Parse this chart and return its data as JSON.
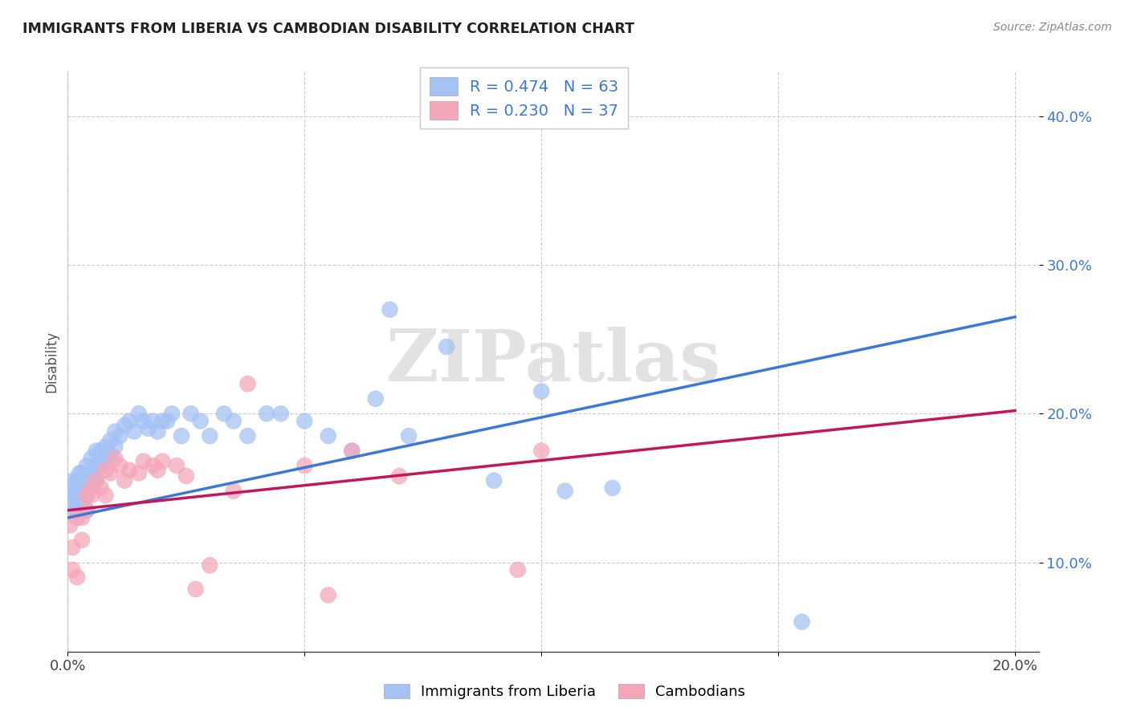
{
  "title": "IMMIGRANTS FROM LIBERIA VS CAMBODIAN DISABILITY CORRELATION CHART",
  "source": "Source: ZipAtlas.com",
  "xlabel_label": "Immigrants from Liberia",
  "ylabel_label": "Disability",
  "xlim": [
    0.0,
    0.205
  ],
  "ylim": [
    0.04,
    0.43
  ],
  "xtick_positions": [
    0.0,
    0.05,
    0.1,
    0.15,
    0.2
  ],
  "xtick_labels": [
    "0.0%",
    "",
    "",
    "",
    "20.0%"
  ],
  "ytick_positions": [
    0.1,
    0.2,
    0.3,
    0.4
  ],
  "ytick_labels": [
    "10.0%",
    "20.0%",
    "30.0%",
    "40.0%"
  ],
  "blue_color": "#a4c2f4",
  "pink_color": "#f4a7b9",
  "blue_line_color": "#3c78d8",
  "pink_line_color": "#c2185b",
  "R_blue": 0.474,
  "N_blue": 63,
  "R_pink": 0.23,
  "N_pink": 37,
  "watermark": "ZIPatlas",
  "blue_line_x0": 0.0,
  "blue_line_y0": 0.13,
  "blue_line_x1": 0.2,
  "blue_line_y1": 0.265,
  "pink_line_x0": 0.0,
  "pink_line_x1": 0.2,
  "pink_line_y0": 0.135,
  "pink_line_y1": 0.202,
  "blue_x": [
    0.0005,
    0.001,
    0.001,
    0.001,
    0.0015,
    0.002,
    0.002,
    0.002,
    0.0025,
    0.003,
    0.003,
    0.003,
    0.004,
    0.004,
    0.004,
    0.004,
    0.005,
    0.005,
    0.005,
    0.006,
    0.006,
    0.006,
    0.007,
    0.007,
    0.008,
    0.008,
    0.009,
    0.009,
    0.01,
    0.01,
    0.011,
    0.012,
    0.013,
    0.014,
    0.015,
    0.016,
    0.017,
    0.018,
    0.019,
    0.02,
    0.021,
    0.022,
    0.024,
    0.026,
    0.028,
    0.03,
    0.033,
    0.035,
    0.038,
    0.042,
    0.045,
    0.05,
    0.055,
    0.06,
    0.065,
    0.068,
    0.072,
    0.08,
    0.09,
    0.1,
    0.105,
    0.115,
    0.155
  ],
  "blue_y": [
    0.14,
    0.145,
    0.155,
    0.135,
    0.15,
    0.155,
    0.145,
    0.135,
    0.16,
    0.15,
    0.14,
    0.16,
    0.165,
    0.155,
    0.145,
    0.135,
    0.17,
    0.16,
    0.15,
    0.175,
    0.165,
    0.155,
    0.175,
    0.165,
    0.178,
    0.17,
    0.182,
    0.172,
    0.188,
    0.178,
    0.185,
    0.192,
    0.195,
    0.188,
    0.2,
    0.195,
    0.19,
    0.195,
    0.188,
    0.195,
    0.195,
    0.2,
    0.185,
    0.2,
    0.195,
    0.185,
    0.2,
    0.195,
    0.185,
    0.2,
    0.2,
    0.195,
    0.185,
    0.175,
    0.21,
    0.27,
    0.185,
    0.245,
    0.155,
    0.215,
    0.148,
    0.15,
    0.06
  ],
  "pink_x": [
    0.0005,
    0.001,
    0.001,
    0.002,
    0.002,
    0.003,
    0.003,
    0.004,
    0.004,
    0.005,
    0.005,
    0.006,
    0.007,
    0.008,
    0.008,
    0.009,
    0.01,
    0.011,
    0.012,
    0.013,
    0.015,
    0.016,
    0.018,
    0.019,
    0.02,
    0.023,
    0.025,
    0.027,
    0.03,
    0.035,
    0.038,
    0.05,
    0.055,
    0.06,
    0.07,
    0.095,
    0.1
  ],
  "pink_y": [
    0.125,
    0.095,
    0.11,
    0.09,
    0.13,
    0.13,
    0.115,
    0.145,
    0.135,
    0.15,
    0.145,
    0.155,
    0.15,
    0.145,
    0.162,
    0.16,
    0.17,
    0.165,
    0.155,
    0.162,
    0.16,
    0.168,
    0.165,
    0.162,
    0.168,
    0.165,
    0.158,
    0.082,
    0.098,
    0.148,
    0.22,
    0.165,
    0.078,
    0.175,
    0.158,
    0.095,
    0.175
  ]
}
